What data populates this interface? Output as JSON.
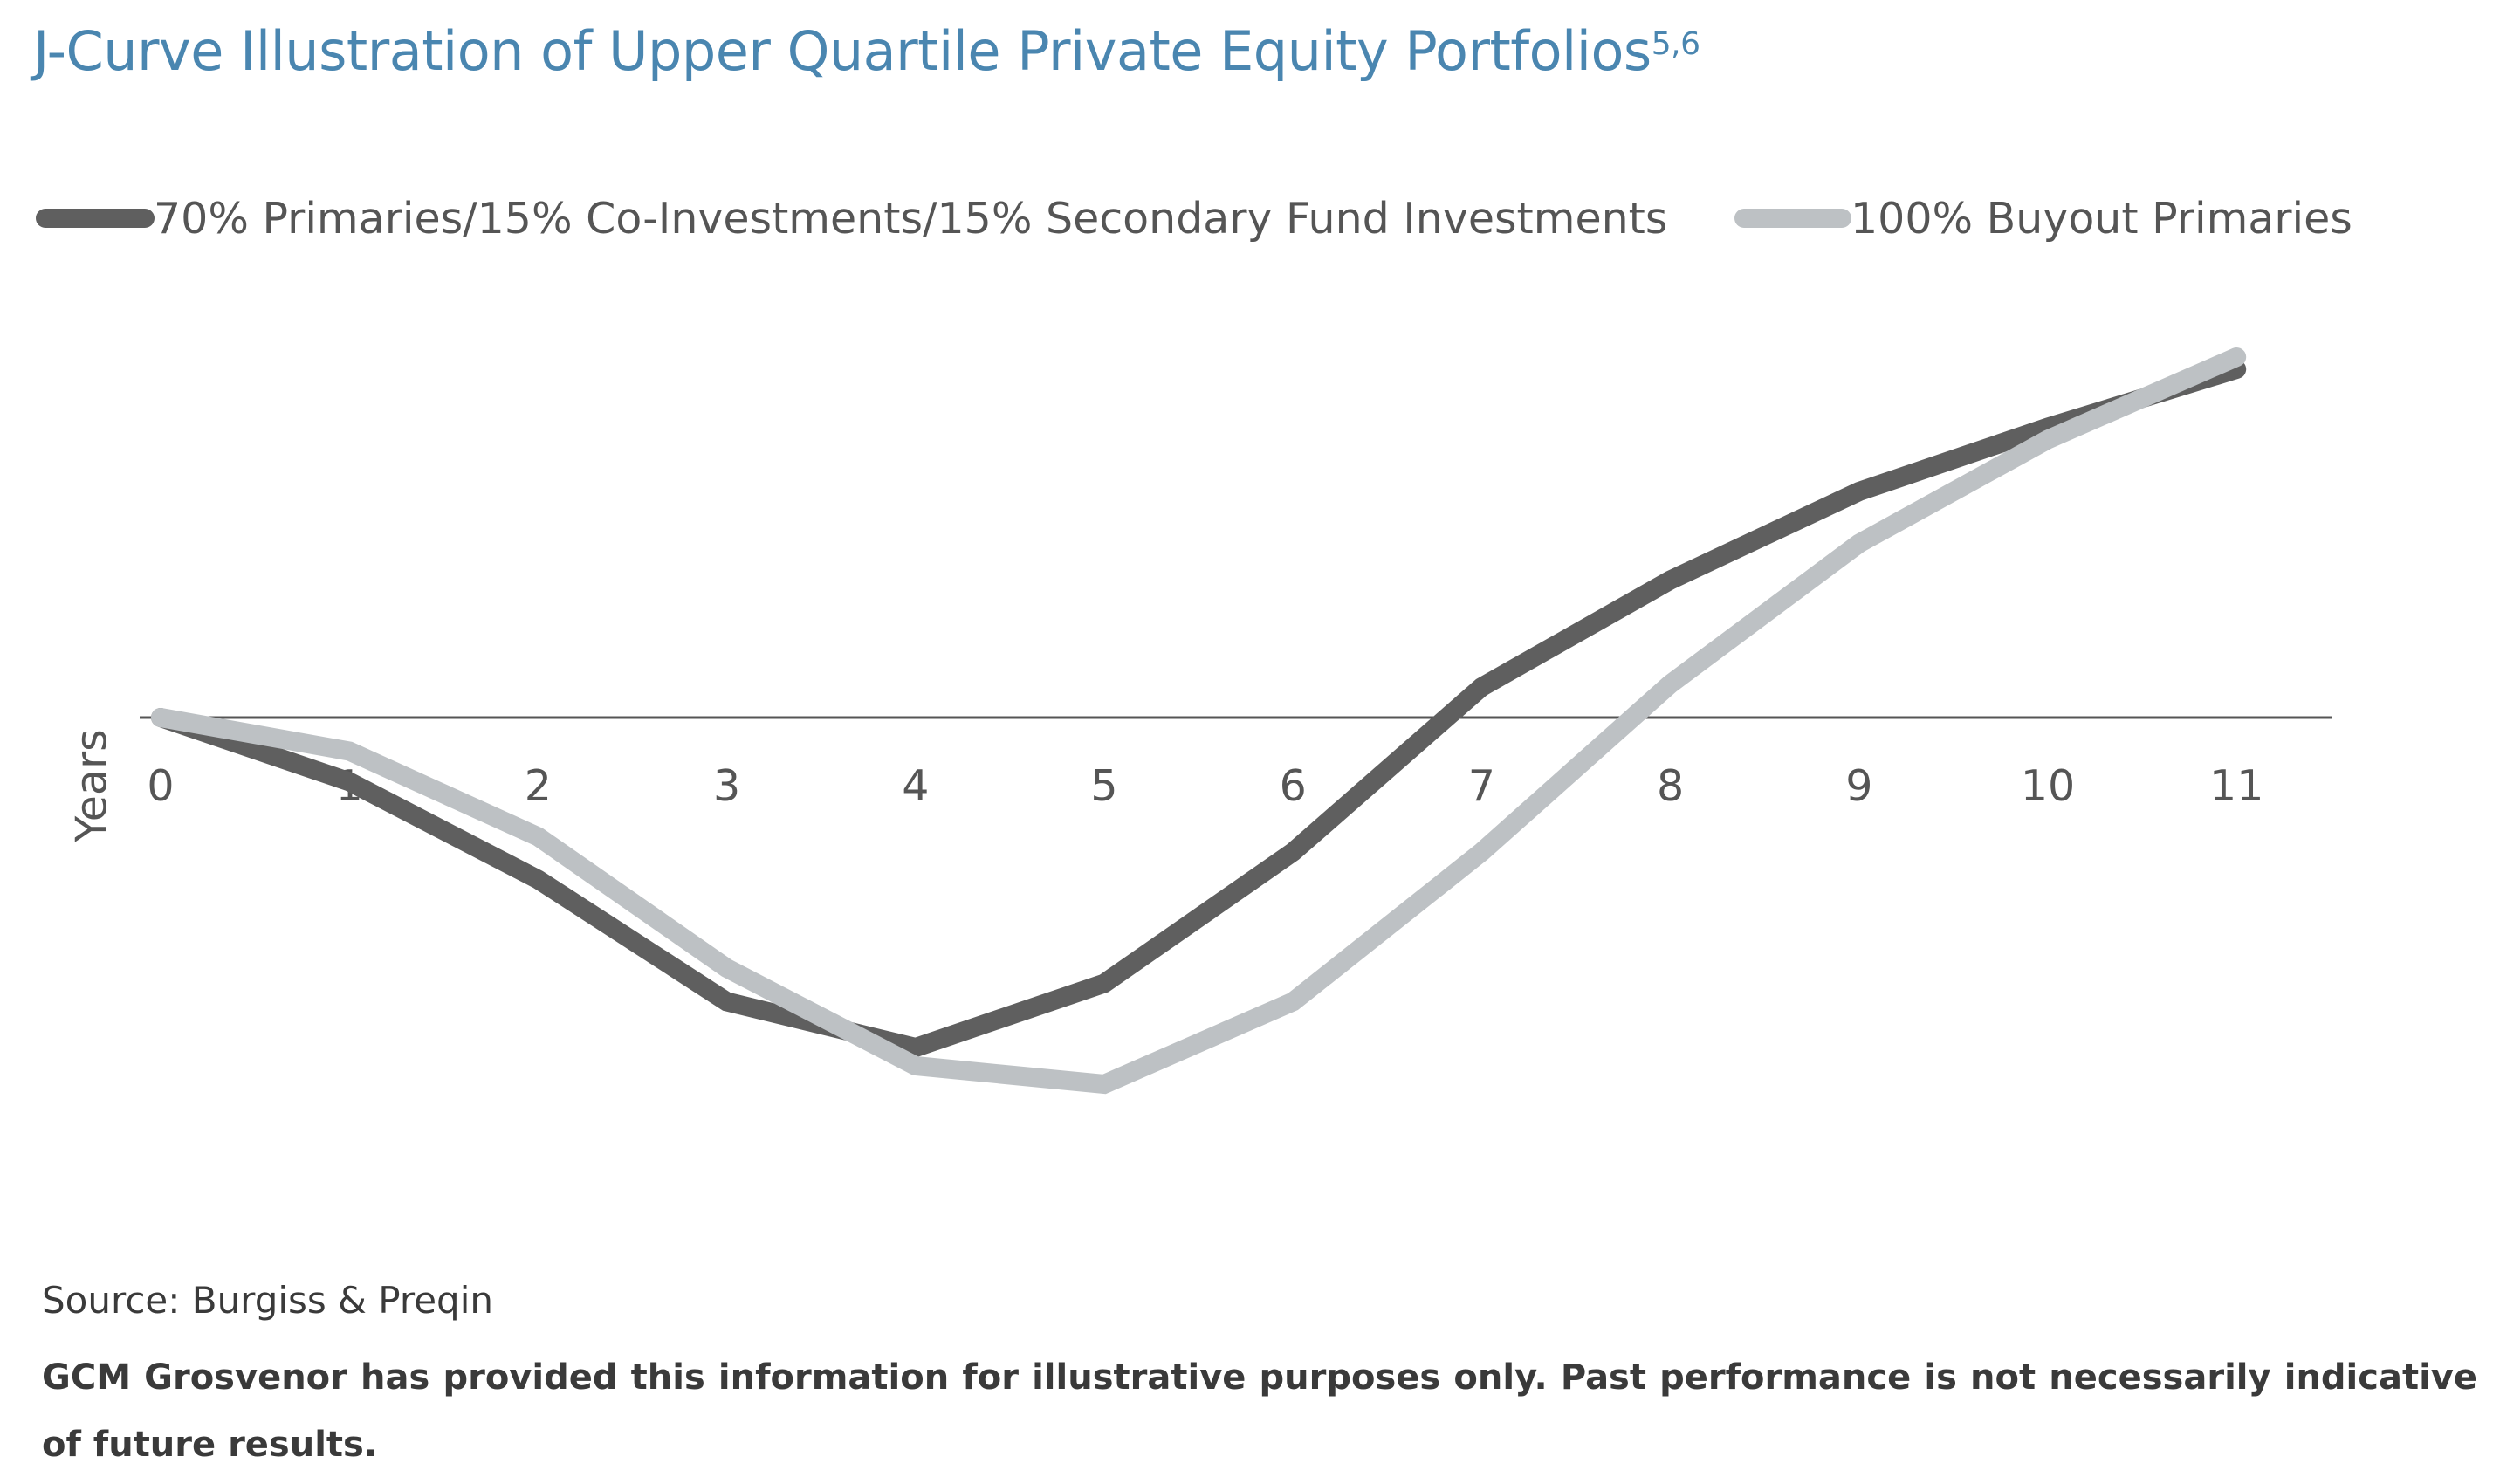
{
  "title": "J-Curve Illustration of Upper Quartile Private Equity Portfolios",
  "title_superscript": "5,6",
  "source": "Source: Burgiss & Preqin",
  "disclaimer": "GCM Grosvenor has provided this information for illustrative purposes only. Past performance is not necessarily indicative of future results.",
  "chart_data": {
    "type": "line",
    "title": "J-Curve Illustration of Upper Quartile Private Equity Portfolios",
    "xlabel": "Years",
    "ylabel": "",
    "x": [
      0,
      1,
      2,
      3,
      4,
      5,
      6,
      7,
      8,
      9,
      10,
      11
    ],
    "x_tick_labels": [
      "0",
      "1",
      "2",
      "3",
      "4",
      "5",
      "6",
      "7",
      "8",
      "9",
      "10",
      "11"
    ],
    "ylim": [
      -140,
      140
    ],
    "y_axis_visible": false,
    "grid": false,
    "legend_position": "top",
    "series": [
      {
        "name": "70% Primaries/15% Co-Investments/15% Secondary Fund Investments",
        "color": "#5f5f5f",
        "values": [
          0,
          -21,
          -53,
          -93,
          -108,
          -87,
          -44,
          10,
          45,
          74,
          95,
          114
        ]
      },
      {
        "name": "100% Buyout Primaries",
        "color": "#bdc1c4",
        "values": [
          0,
          -11,
          -39,
          -82,
          -114,
          -120,
          -93,
          -44,
          11,
          57,
          91,
          118
        ]
      }
    ]
  }
}
